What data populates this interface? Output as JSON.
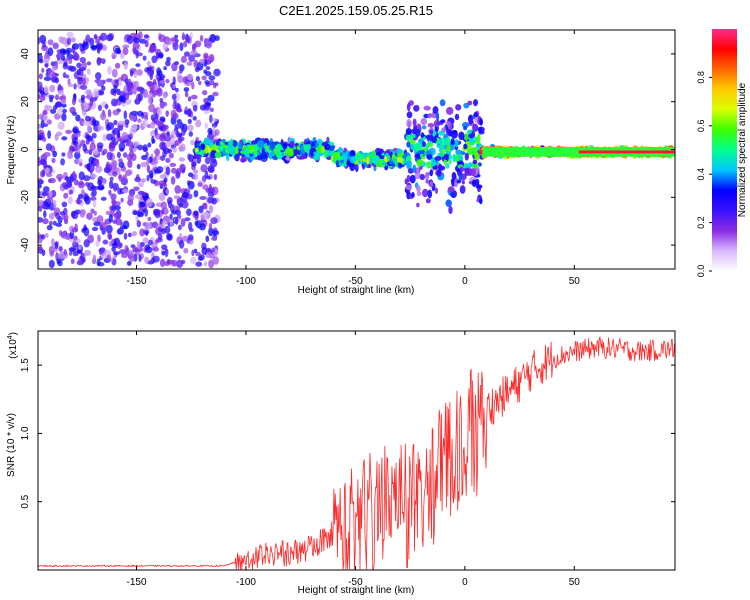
{
  "title": "C2E1.2025.159.05.25.R15",
  "chart_data": [
    {
      "type": "heatmap",
      "xlabel": "Height of straight line (km)",
      "ylabel": "Frequency (Hz)",
      "xlim": [
        -195,
        96
      ],
      "ylim": [
        -50,
        50
      ],
      "xticks": [
        -150,
        -100,
        -50,
        0,
        50
      ],
      "yticks": [
        -40,
        -20,
        0,
        20,
        40
      ],
      "colorbar": {
        "label": "Normalized spectral amplitude",
        "range": [
          0,
          1
        ],
        "ticks": [
          "0.0",
          "0.2",
          "0.4",
          "0.6",
          "0.8"
        ],
        "colors": [
          "#ffffff",
          "#d9b8ff",
          "#8a2be2",
          "#3a10ff",
          "#0000ff",
          "#00c8ff",
          "#00ff90",
          "#3cff00",
          "#d8ff00",
          "#ffcc00",
          "#ff6600",
          "#ff0000",
          "#ff2c8c"
        ]
      },
      "segments": [
        {
          "x": [
            -195,
            -113
          ],
          "center_hz": 0,
          "spread_hz": 48,
          "level": 0.25,
          "desc": "broadband noise"
        },
        {
          "x": [
            -123,
            -60
          ],
          "center_hz": 0,
          "spread_hz": 5,
          "level": 0.45
        },
        {
          "x": [
            -60,
            -27
          ],
          "center_hz": -4,
          "spread_hz": 4,
          "level": 0.5
        },
        {
          "x": [
            -27,
            8
          ],
          "center_hz": 0,
          "spread_hz": 30,
          "level": 0.4
        },
        {
          "x": [
            8,
            96
          ],
          "center_hz": -1,
          "spread_hz": 2,
          "level": 0.9
        }
      ]
    },
    {
      "type": "line",
      "xlabel": "Height of straight line (km)",
      "ylabel": "SNR (10 * v/v)",
      "yscale_label": "(x10",
      "yscale_exp": "4",
      "xlim": [
        -195,
        96
      ],
      "ylim": [
        0,
        1.75
      ],
      "xticks": [
        -150,
        -100,
        -50,
        0,
        50
      ],
      "yticks": [
        0.5,
        1.0,
        1.5
      ],
      "ytick_labels": [
        "0.5",
        "1.0",
        "1.5"
      ],
      "color": "#ff2b2b",
      "x": [
        -195,
        -150,
        -110,
        -100,
        -90,
        -80,
        -70,
        -60,
        -50,
        -40,
        -30,
        -20,
        -10,
        0,
        10,
        20,
        30,
        40,
        50,
        60,
        70,
        80,
        96
      ],
      "y": [
        0.03,
        0.03,
        0.03,
        0.08,
        0.15,
        0.15,
        0.2,
        0.3,
        0.45,
        0.55,
        0.6,
        0.72,
        0.85,
        1.1,
        1.18,
        1.3,
        1.45,
        1.55,
        1.6,
        1.63,
        1.62,
        1.6,
        1.62
      ]
    }
  ]
}
